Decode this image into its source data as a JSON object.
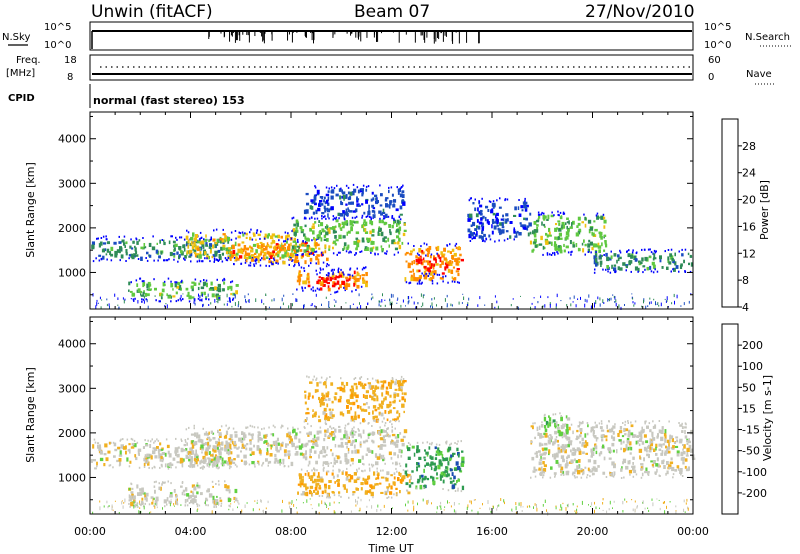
{
  "header": {
    "station": "Unwin (fitACF)",
    "beam": "Beam 07",
    "date": "27/Nov/2010"
  },
  "top_panel": {
    "left_label": "N.Sky",
    "right_label": "N.Search",
    "left_ticks": [
      "10^5",
      "10^0"
    ],
    "right_ticks": [
      "10^5",
      "10^0"
    ]
  },
  "freq_panel": {
    "left_label_1": "Freq.",
    "left_label_2": "[MHz]",
    "right_label": "Nave",
    "left_ticks": [
      "18",
      "8"
    ],
    "right_ticks": [
      "60",
      "0"
    ]
  },
  "cpid_panel": {
    "label": "CPID",
    "text": "normal (fast stereo) 153"
  },
  "chart_data": [
    {
      "type": "heatmap",
      "name": "power",
      "ylabel": "Slant Range [km]",
      "ylim": [
        180,
        4600
      ],
      "yticks": [
        1000,
        2000,
        3000,
        4000
      ],
      "colorbar_label": "Power [dB]",
      "colorbar_ticks": [
        "28",
        "24",
        "20",
        "16",
        "12",
        "8",
        "4"
      ],
      "colors": [
        "#0000ff",
        "#1a4cc0",
        "#2e8b57",
        "#5fc840",
        "#f0c010",
        "#ff8c00",
        "#ff0000"
      ],
      "regions": [
        {
          "x": [
            0.0,
            5.6
          ],
          "y": [
            1350,
            1750
          ],
          "level": 2
        },
        {
          "x": [
            1.5,
            5.8
          ],
          "y": [
            450,
            800
          ],
          "level": 3
        },
        {
          "x": [
            3.8,
            8.2
          ],
          "y": [
            1350,
            1900
          ],
          "level": 4
        },
        {
          "x": [
            5.5,
            9.5
          ],
          "y": [
            1250,
            1700
          ],
          "level": 5
        },
        {
          "x": [
            8.0,
            12.5
          ],
          "y": [
            1500,
            2200
          ],
          "level": 3
        },
        {
          "x": [
            8.2,
            11.0
          ],
          "y": [
            700,
            1050
          ],
          "level": 5
        },
        {
          "x": [
            9.0,
            10.5
          ],
          "y": [
            650,
            950
          ],
          "level": 6
        },
        {
          "x": [
            12.5,
            14.8
          ],
          "y": [
            850,
            1600
          ],
          "level": 5
        },
        {
          "x": [
            13.0,
            14.2
          ],
          "y": [
            1000,
            1400
          ],
          "level": 6
        },
        {
          "x": [
            8.5,
            12.5
          ],
          "y": [
            2300,
            2900
          ],
          "level": 1
        },
        {
          "x": [
            17.5,
            20.5
          ],
          "y": [
            1500,
            2300
          ],
          "level": 3
        },
        {
          "x": [
            20.0,
            24.0
          ],
          "y": [
            1100,
            1450
          ],
          "level": 2
        },
        {
          "x": [
            15.0,
            17.5
          ],
          "y": [
            1800,
            2600
          ],
          "level": 1
        }
      ]
    },
    {
      "type": "heatmap",
      "name": "velocity",
      "xlabel": "Time UT",
      "ylabel": "Slant Range [km]",
      "ylim": [
        180,
        4600
      ],
      "yticks": [
        1000,
        2000,
        3000,
        4000
      ],
      "xlim": [
        0,
        24
      ],
      "xticks": [
        "00:00",
        "04:00",
        "08:00",
        "12:00",
        "16:00",
        "20:00",
        "00:00"
      ],
      "colorbar_label": "Velocity [m s-1]",
      "colorbar_ticks": [
        "200",
        "100",
        "50",
        "15",
        "-15",
        "-50",
        "-100",
        "-200"
      ],
      "colors": [
        "#ff0000",
        "#ff5a00",
        "#ff9a00",
        "#f0b020",
        "#c8c8c0",
        "#60d040",
        "#2e9b50",
        "#1a4cb0",
        "#0010d0"
      ],
      "regions": [
        {
          "x": [
            0.0,
            5.6
          ],
          "y": [
            1300,
            1800
          ],
          "level": 4
        },
        {
          "x": [
            1.5,
            5.8
          ],
          "y": [
            450,
            850
          ],
          "level": 4
        },
        {
          "x": [
            3.8,
            12.5
          ],
          "y": [
            1350,
            2100
          ],
          "level": 4
        },
        {
          "x": [
            8.2,
            12.8
          ],
          "y": [
            650,
            1150
          ],
          "level": 3
        },
        {
          "x": [
            12.5,
            14.8
          ],
          "y": [
            800,
            1750
          ],
          "level": 6
        },
        {
          "x": [
            8.5,
            12.5
          ],
          "y": [
            2300,
            3200
          ],
          "level": 3
        },
        {
          "x": [
            17.5,
            24.0
          ],
          "y": [
            1100,
            2200
          ],
          "level": 4
        },
        {
          "x": [
            18.0,
            19.0
          ],
          "y": [
            2000,
            2400
          ],
          "level": 5
        }
      ]
    }
  ]
}
